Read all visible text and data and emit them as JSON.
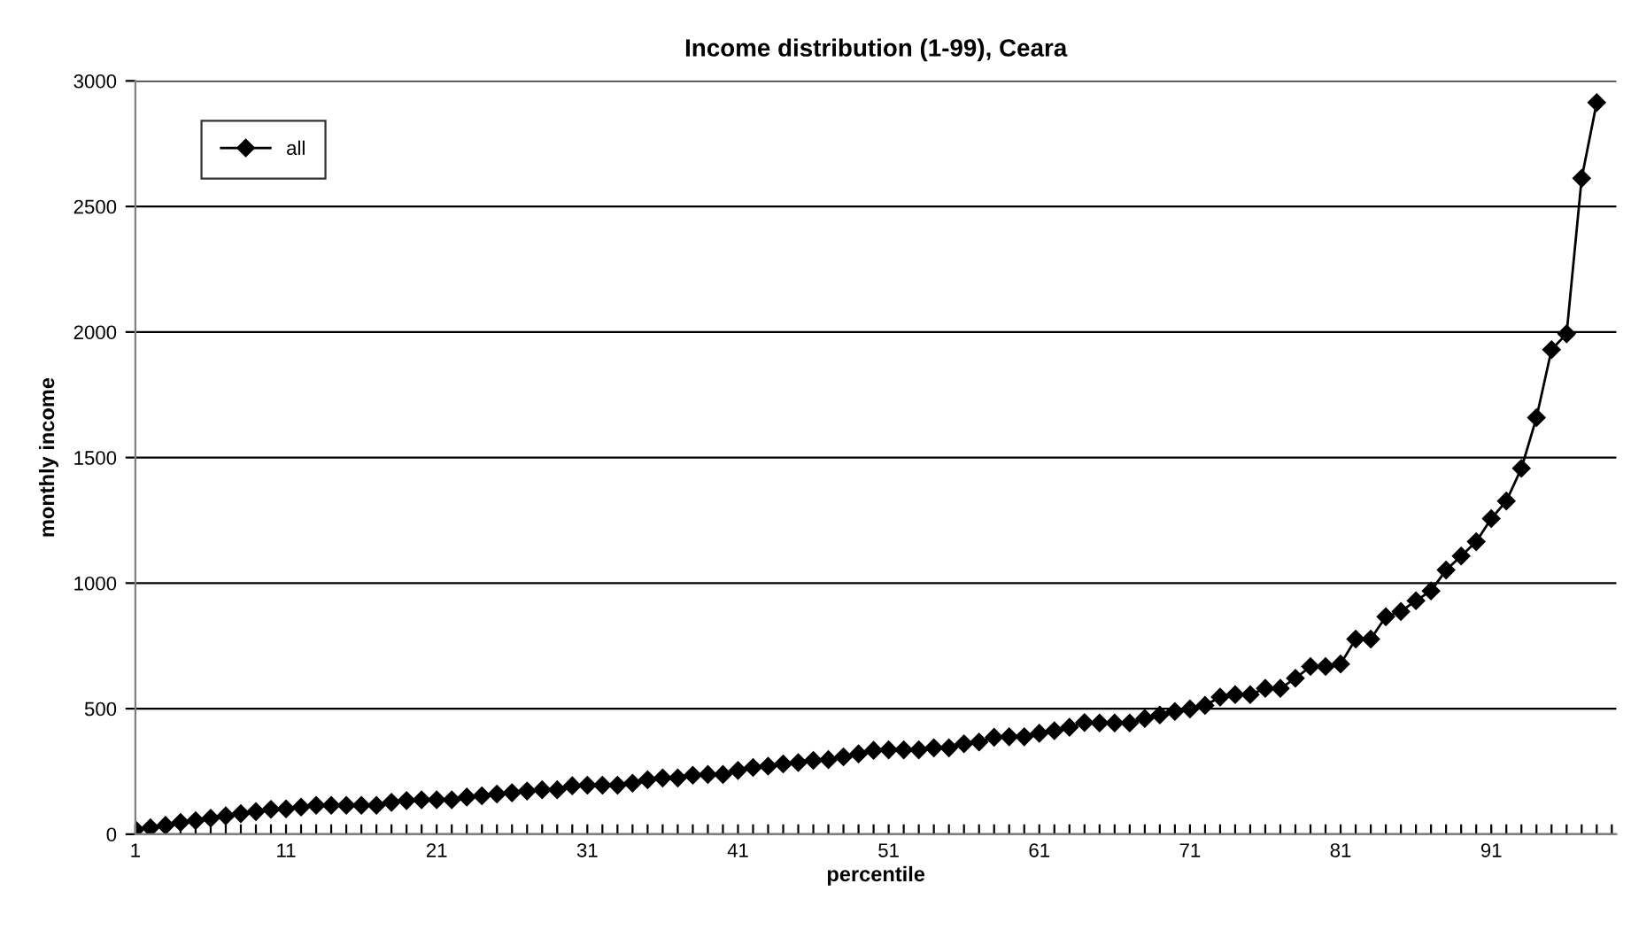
{
  "chart_data": {
    "type": "line",
    "title": "Income distribution (1-99), Ceara",
    "xlabel": "percentile",
    "ylabel": "monthly income",
    "categories": [
      "1",
      null,
      null,
      null,
      null,
      null,
      null,
      null,
      null,
      null,
      "11",
      null,
      null,
      null,
      null,
      null,
      null,
      null,
      null,
      null,
      "21",
      null,
      null,
      null,
      null,
      null,
      null,
      null,
      null,
      null,
      "31",
      null,
      null,
      null,
      null,
      null,
      null,
      null,
      null,
      null,
      "41",
      null,
      null,
      null,
      null,
      null,
      null,
      null,
      null,
      null,
      "51",
      null,
      null,
      null,
      null,
      null,
      null,
      null,
      null,
      null,
      "61",
      null,
      null,
      null,
      null,
      null,
      null,
      null,
      null,
      null,
      "71",
      null,
      null,
      null,
      null,
      null,
      null,
      null,
      null,
      null,
      "81",
      null,
      null,
      null,
      null,
      null,
      null,
      null,
      null,
      null,
      "91",
      null,
      null,
      null,
      null,
      null,
      null,
      null,
      null
    ],
    "series": [
      {
        "name": "all",
        "color": "#000000",
        "values": [
          19,
          26,
          35,
          47,
          54,
          64,
          73,
          82,
          90,
          99,
          101,
          108,
          115,
          115,
          115,
          115,
          115,
          127,
          134,
          137,
          137,
          137,
          148,
          153,
          160,
          165,
          172,
          177,
          177,
          193,
          195,
          195,
          195,
          203,
          217,
          224,
          224,
          235,
          238,
          238,
          254,
          266,
          271,
          280,
          285,
          294,
          297,
          308,
          320,
          334,
          336,
          336,
          336,
          344,
          344,
          360,
          367,
          386,
          388,
          388,
          402,
          412,
          426,
          445,
          443,
          443,
          443,
          461,
          475,
          489,
          499,
          513,
          546,
          556,
          556,
          581,
          581,
          621,
          668,
          668,
          678,
          777,
          777,
          866,
          887,
          930,
          969,
          1052,
          1108,
          1165,
          1257,
          1327,
          1457,
          1659,
          1930,
          1993,
          2612,
          2914,
          null
        ]
      }
    ],
    "ylim": [
      0,
      3000
    ],
    "yticks": [
      0,
      500,
      1000,
      1500,
      2000,
      2500,
      3000
    ],
    "grid": "y",
    "legend": "top left",
    "marker": "diamond",
    "line_style": "solid"
  }
}
